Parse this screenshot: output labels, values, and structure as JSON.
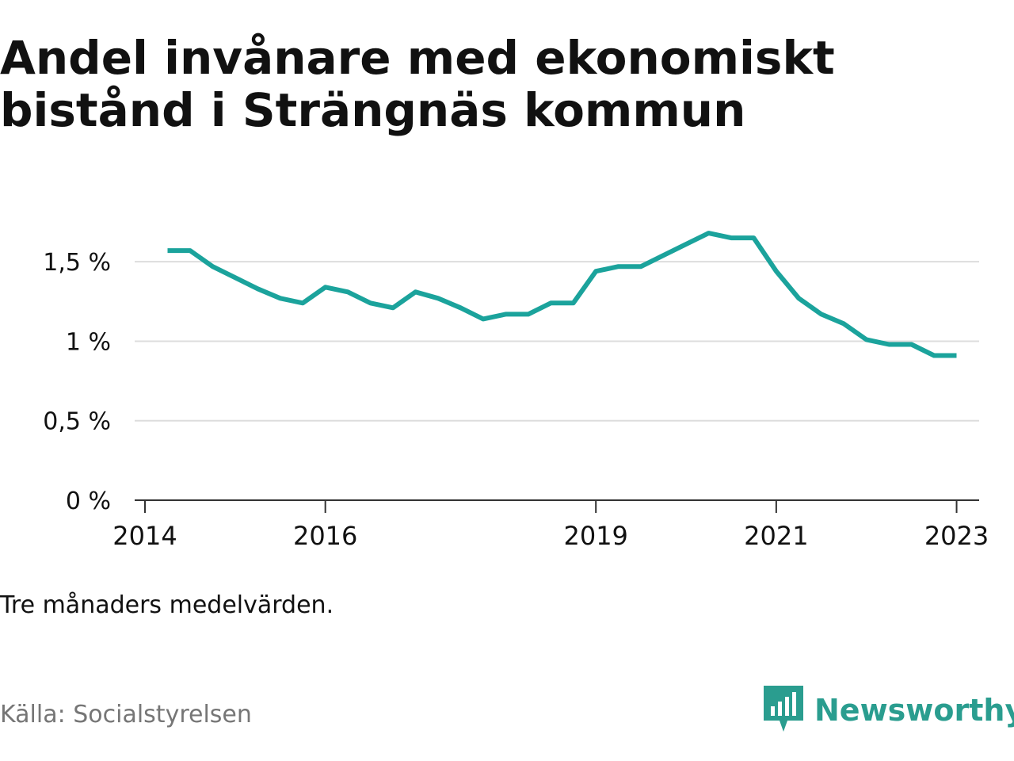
{
  "title": "Andel invånare med ekonomiskt bistånd i Strängnäs kommun",
  "note": "Tre månaders medelvärden.",
  "source": "Källa: Socialstyrelsen",
  "brand": {
    "name": "Newsworthy",
    "icon": "newsworthy-logo-icon",
    "color": "#2a9d8f"
  },
  "colors": {
    "line": "#1ba39c",
    "grid": "#dddddd",
    "axis": "#333333",
    "text": "#111111"
  },
  "chart_data": {
    "type": "line",
    "title": "Andel invånare med ekonomiskt bistånd i Strängnäs kommun",
    "xlabel": "",
    "ylabel": "",
    "ylim": [
      0,
      1.8
    ],
    "xlim": [
      "2014-01",
      "2023-04"
    ],
    "grid": true,
    "legend": "none",
    "y_ticks": [
      {
        "value": 0,
        "label": "0 %"
      },
      {
        "value": 0.5,
        "label": "0,5 %"
      },
      {
        "value": 1,
        "label": "1 %"
      },
      {
        "value": 1.5,
        "label": "1,5 %"
      }
    ],
    "x_ticks": [
      {
        "value": "2014-01",
        "label": "2014"
      },
      {
        "value": "2016-01",
        "label": "2016"
      },
      {
        "value": "2019-01",
        "label": "2019"
      },
      {
        "value": "2021-01",
        "label": "2021"
      },
      {
        "value": "2023-01",
        "label": "2023"
      }
    ],
    "series": [
      {
        "x": [
          "2014-04",
          "2014-07",
          "2014-10",
          "2015-01",
          "2015-04",
          "2015-07",
          "2015-10",
          "2016-01",
          "2016-04",
          "2016-07",
          "2016-10",
          "2017-01",
          "2017-04",
          "2017-07",
          "2017-10",
          "2018-01",
          "2018-04",
          "2018-07",
          "2018-10",
          "2019-01",
          "2019-04",
          "2019-07",
          "2019-10",
          "2020-01",
          "2020-04",
          "2020-07",
          "2020-10",
          "2021-01",
          "2021-04",
          "2021-07",
          "2021-10",
          "2022-01",
          "2022-04",
          "2022-07",
          "2022-10",
          "2023-01"
        ],
        "values": [
          1.57,
          1.57,
          1.47,
          1.4,
          1.33,
          1.27,
          1.24,
          1.34,
          1.31,
          1.24,
          1.21,
          1.31,
          1.27,
          1.21,
          1.14,
          1.17,
          1.17,
          1.24,
          1.24,
          1.44,
          1.47,
          1.47,
          1.54,
          1.61,
          1.68,
          1.65,
          1.65,
          1.44,
          1.27,
          1.17,
          1.11,
          1.01,
          0.98,
          0.98,
          0.91,
          0.91
        ]
      }
    ]
  }
}
